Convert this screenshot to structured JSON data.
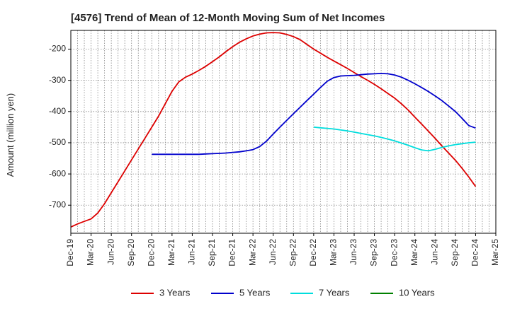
{
  "chart_data": {
    "type": "line",
    "title": "[4576]  Trend of Mean of 12-Month Moving Sum of Net Incomes",
    "xlabel": "",
    "ylabel": "Amount (million yen)",
    "x_ticks": [
      "Dec-19",
      "Mar-20",
      "Jun-20",
      "Sep-20",
      "Dec-20",
      "Mar-21",
      "Jun-21",
      "Sep-21",
      "Dec-21",
      "Mar-22",
      "Jun-22",
      "Sep-22",
      "Dec-22",
      "Mar-23",
      "Jun-23",
      "Sep-23",
      "Dec-23",
      "Mar-24",
      "Jun-24",
      "Sep-24",
      "Dec-24",
      "Mar-25"
    ],
    "y_ticks": [
      -200,
      -300,
      -400,
      -500,
      -600,
      -700
    ],
    "ylim": [
      -790,
      -140
    ],
    "grid": true,
    "legend_position": "bottom",
    "series": [
      {
        "name": "3 Years",
        "color": "#dd0000",
        "x": [
          "Dec-19",
          "Jan-20",
          "Feb-20",
          "Mar-20",
          "Apr-20",
          "May-20",
          "Jun-20",
          "Jul-20",
          "Aug-20",
          "Sep-20",
          "Oct-20",
          "Nov-20",
          "Dec-20",
          "Jan-21",
          "Feb-21",
          "Mar-21",
          "Apr-21",
          "May-21",
          "Jun-21",
          "Jul-21",
          "Aug-21",
          "Sep-21",
          "Oct-21",
          "Nov-21",
          "Dec-21",
          "Jan-22",
          "Feb-22",
          "Mar-22",
          "Apr-22",
          "May-22",
          "Jun-22",
          "Jul-22",
          "Aug-22",
          "Sep-22",
          "Oct-22",
          "Nov-22",
          "Dec-22",
          "Jan-23",
          "Feb-23",
          "Mar-23",
          "Apr-23",
          "May-23",
          "Jun-23",
          "Jul-23",
          "Aug-23",
          "Sep-23",
          "Oct-23",
          "Nov-23",
          "Dec-23",
          "Jan-24",
          "Feb-24",
          "Mar-24",
          "Apr-24",
          "May-24",
          "Jun-24",
          "Jul-24",
          "Aug-24",
          "Sep-24",
          "Oct-24",
          "Nov-24",
          "Dec-24"
        ],
        "values": [
          -770,
          -760,
          -752,
          -744,
          -725,
          -695,
          -660,
          -625,
          -590,
          -555,
          -520,
          -485,
          -450,
          -415,
          -375,
          -335,
          -305,
          -290,
          -280,
          -268,
          -255,
          -240,
          -225,
          -208,
          -192,
          -178,
          -167,
          -158,
          -152,
          -148,
          -147,
          -148,
          -153,
          -160,
          -170,
          -185,
          -200,
          -213,
          -226,
          -238,
          -250,
          -262,
          -275,
          -288,
          -300,
          -313,
          -327,
          -342,
          -357,
          -375,
          -395,
          -418,
          -440,
          -463,
          -486,
          -510,
          -533,
          -556,
          -582,
          -610,
          -640
        ]
      },
      {
        "name": "5 Years",
        "color": "#0000cc",
        "x": [
          "Dec-20",
          "Jan-21",
          "Feb-21",
          "Mar-21",
          "Apr-21",
          "May-21",
          "Jun-21",
          "Jul-21",
          "Aug-21",
          "Sep-21",
          "Oct-21",
          "Nov-21",
          "Dec-21",
          "Jan-22",
          "Feb-22",
          "Mar-22",
          "Apr-22",
          "May-22",
          "Jun-22",
          "Jul-22",
          "Aug-22",
          "Sep-22",
          "Oct-22",
          "Nov-22",
          "Dec-22",
          "Jan-23",
          "Feb-23",
          "Mar-23",
          "Apr-23",
          "May-23",
          "Jun-23",
          "Jul-23",
          "Aug-23",
          "Sep-23",
          "Oct-23",
          "Nov-23",
          "Dec-23",
          "Jan-24",
          "Feb-24",
          "Mar-24",
          "Apr-24",
          "May-24",
          "Jun-24",
          "Jul-24",
          "Aug-24",
          "Sep-24",
          "Oct-24",
          "Nov-24",
          "Dec-24"
        ],
        "values": [
          -537,
          -537,
          -537,
          -537,
          -537,
          -537,
          -537,
          -537,
          -536,
          -535,
          -534,
          -533,
          -531,
          -529,
          -526,
          -522,
          -512,
          -495,
          -472,
          -450,
          -428,
          -407,
          -386,
          -365,
          -344,
          -323,
          -303,
          -291,
          -286,
          -285,
          -284,
          -282,
          -280,
          -279,
          -278,
          -279,
          -283,
          -290,
          -300,
          -311,
          -323,
          -336,
          -350,
          -365,
          -382,
          -400,
          -422,
          -445,
          -453
        ]
      },
      {
        "name": "7 Years",
        "color": "#00dddd",
        "x": [
          "Dec-22",
          "Jan-23",
          "Feb-23",
          "Mar-23",
          "Apr-23",
          "May-23",
          "Jun-23",
          "Jul-23",
          "Aug-23",
          "Sep-23",
          "Oct-23",
          "Nov-23",
          "Dec-23",
          "Jan-24",
          "Feb-24",
          "Mar-24",
          "Apr-24",
          "May-24",
          "Jun-24",
          "Jul-24",
          "Aug-24",
          "Sep-24",
          "Oct-24",
          "Nov-24",
          "Dec-24"
        ],
        "values": [
          -450,
          -452,
          -454,
          -456,
          -459,
          -462,
          -466,
          -470,
          -474,
          -478,
          -483,
          -488,
          -494,
          -501,
          -508,
          -516,
          -523,
          -526,
          -521,
          -515,
          -510,
          -506,
          -503,
          -500,
          -498
        ]
      },
      {
        "name": "10 Years",
        "color": "#008000",
        "x": [],
        "values": []
      }
    ]
  }
}
